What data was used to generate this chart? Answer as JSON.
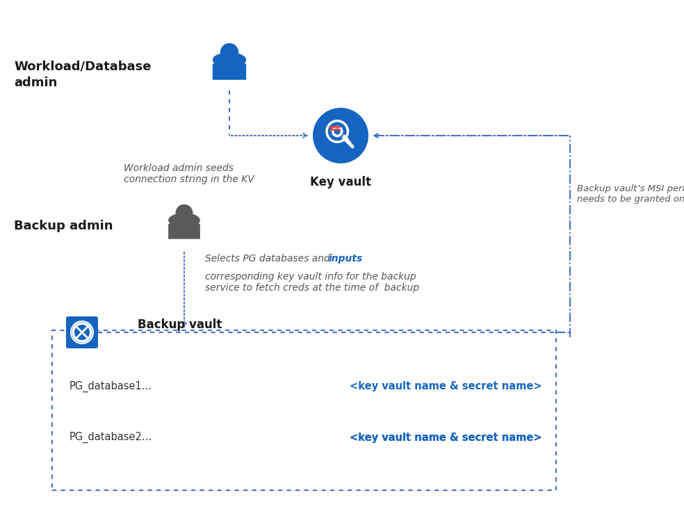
{
  "bg_color": "#ffffff",
  "blue": "#1565c0",
  "dark_gray": "#555555",
  "dash_blue": "#4472c4",
  "arrow_blue": "#1565c0",
  "workload_admin_label_line1": "Workload/Database",
  "workload_admin_label_line2": "admin",
  "key_vault_label": "Key vault",
  "arrow1_label": "Workload admin seeds\nconnection string in the KV",
  "backup_admin_label": "Backup admin",
  "arrow2_label_part1": "Selects PG databases and ",
  "arrow2_label_inputs": "inputs",
  "arrow2_label_part2": "corresponding key vault info for the backup\nservice to fetch creds at the time of  backup",
  "backup_vault_label": "Backup vault",
  "pg1_label": "PG_database1...",
  "pg1_kv_label": "<key vault name & secret name>",
  "pg2_label": "PG_database2...",
  "pg2_kv_label": "<key vault name & secret name>",
  "msi_label": "Backup vault’s MSI permission\nneeds to be granted on the KV"
}
